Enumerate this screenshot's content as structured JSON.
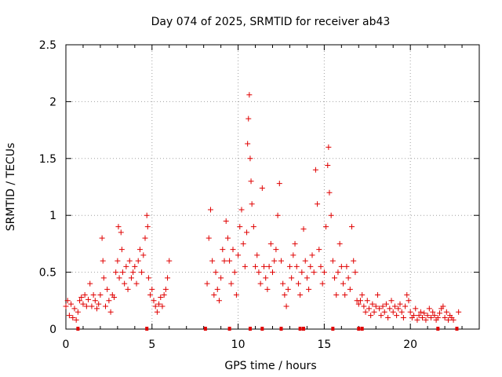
{
  "chart_data": {
    "type": "scatter",
    "title": "Day 074 of 2025, SRMTID for receiver ab43",
    "xlabel": "GPS time / hours",
    "ylabel": "SRMTID / TECUs",
    "xlim": [
      0,
      24
    ],
    "ylim": [
      0,
      2.5
    ],
    "xticks": [
      0,
      5,
      10,
      15,
      20
    ],
    "yticks": [
      0,
      0.5,
      1,
      1.5,
      2,
      2.5
    ],
    "xtick_labels": [
      "0",
      "5",
      "10",
      "15",
      "20"
    ],
    "ytick_labels": [
      "0",
      "0.5",
      "1",
      "1.5",
      "2",
      "2.5"
    ],
    "grid": true,
    "marker": "+",
    "color": "#e00000",
    "series": [
      {
        "name": "SRMTID",
        "points": [
          [
            0.0,
            0.2
          ],
          [
            0.1,
            0.25
          ],
          [
            0.2,
            0.12
          ],
          [
            0.3,
            0.22
          ],
          [
            0.4,
            0.1
          ],
          [
            0.5,
            0.18
          ],
          [
            0.6,
            0.08
          ],
          [
            0.7,
            0.15
          ],
          [
            0.8,
            0.25
          ],
          [
            0.9,
            0.28
          ],
          [
            1.0,
            0.22
          ],
          [
            1.1,
            0.3
          ],
          [
            1.2,
            0.2
          ],
          [
            1.3,
            0.26
          ],
          [
            1.4,
            0.4
          ],
          [
            1.5,
            0.2
          ],
          [
            1.6,
            0.3
          ],
          [
            1.7,
            0.25
          ],
          [
            1.8,
            0.18
          ],
          [
            1.9,
            0.22
          ],
          [
            2.0,
            0.3
          ],
          [
            2.1,
            0.8
          ],
          [
            2.15,
            0.6
          ],
          [
            2.2,
            0.45
          ],
          [
            2.3,
            0.2
          ],
          [
            2.4,
            0.35
          ],
          [
            2.5,
            0.25
          ],
          [
            2.6,
            0.15
          ],
          [
            2.7,
            0.3
          ],
          [
            2.8,
            0.28
          ],
          [
            2.9,
            0.5
          ],
          [
            3.0,
            0.6
          ],
          [
            3.05,
            0.9
          ],
          [
            3.1,
            0.45
          ],
          [
            3.2,
            0.85
          ],
          [
            3.25,
            0.7
          ],
          [
            3.3,
            0.5
          ],
          [
            3.4,
            0.4
          ],
          [
            3.5,
            0.55
          ],
          [
            3.6,
            0.35
          ],
          [
            3.7,
            0.6
          ],
          [
            3.8,
            0.45
          ],
          [
            3.9,
            0.5
          ],
          [
            4.0,
            0.55
          ],
          [
            4.1,
            0.4
          ],
          [
            4.2,
            0.6
          ],
          [
            4.3,
            0.7
          ],
          [
            4.4,
            0.5
          ],
          [
            4.5,
            0.65
          ],
          [
            4.6,
            0.8
          ],
          [
            4.7,
            1.0
          ],
          [
            4.75,
            0.9
          ],
          [
            4.8,
            0.45
          ],
          [
            4.9,
            0.3
          ],
          [
            5.0,
            0.35
          ],
          [
            5.1,
            0.25
          ],
          [
            5.2,
            0.2
          ],
          [
            5.3,
            0.15
          ],
          [
            5.4,
            0.22
          ],
          [
            5.5,
            0.28
          ],
          [
            5.6,
            0.2
          ],
          [
            5.7,
            0.3
          ],
          [
            5.8,
            0.35
          ],
          [
            5.9,
            0.45
          ],
          [
            6.0,
            0.6
          ],
          [
            8.2,
            0.4
          ],
          [
            8.3,
            0.8
          ],
          [
            8.4,
            1.05
          ],
          [
            8.5,
            0.6
          ],
          [
            8.6,
            0.3
          ],
          [
            8.7,
            0.5
          ],
          [
            8.8,
            0.35
          ],
          [
            8.9,
            0.25
          ],
          [
            9.0,
            0.45
          ],
          [
            9.1,
            0.7
          ],
          [
            9.2,
            0.6
          ],
          [
            9.3,
            0.95
          ],
          [
            9.4,
            0.8
          ],
          [
            9.5,
            0.6
          ],
          [
            9.6,
            0.4
          ],
          [
            9.7,
            0.7
          ],
          [
            9.8,
            0.5
          ],
          [
            9.9,
            0.3
          ],
          [
            10.0,
            0.65
          ],
          [
            10.1,
            0.9
          ],
          [
            10.2,
            1.05
          ],
          [
            10.3,
            0.75
          ],
          [
            10.4,
            0.55
          ],
          [
            10.5,
            0.85
          ],
          [
            10.55,
            1.63
          ],
          [
            10.6,
            1.85
          ],
          [
            10.65,
            2.06
          ],
          [
            10.7,
            1.5
          ],
          [
            10.75,
            1.3
          ],
          [
            10.8,
            1.1
          ],
          [
            10.9,
            0.9
          ],
          [
            11.0,
            0.55
          ],
          [
            11.1,
            0.65
          ],
          [
            11.2,
            0.5
          ],
          [
            11.3,
            0.4
          ],
          [
            11.4,
            1.24
          ],
          [
            11.5,
            0.55
          ],
          [
            11.6,
            0.45
          ],
          [
            11.7,
            0.35
          ],
          [
            11.8,
            0.55
          ],
          [
            11.9,
            0.75
          ],
          [
            12.0,
            0.5
          ],
          [
            12.1,
            0.6
          ],
          [
            12.2,
            0.7
          ],
          [
            12.3,
            1.0
          ],
          [
            12.4,
            1.28
          ],
          [
            12.5,
            0.6
          ],
          [
            12.6,
            0.4
          ],
          [
            12.7,
            0.3
          ],
          [
            12.8,
            0.2
          ],
          [
            12.9,
            0.35
          ],
          [
            13.0,
            0.55
          ],
          [
            13.1,
            0.45
          ],
          [
            13.2,
            0.65
          ],
          [
            13.3,
            0.75
          ],
          [
            13.4,
            0.55
          ],
          [
            13.5,
            0.4
          ],
          [
            13.6,
            0.3
          ],
          [
            13.7,
            0.5
          ],
          [
            13.8,
            0.88
          ],
          [
            13.9,
            0.6
          ],
          [
            14.0,
            0.45
          ],
          [
            14.1,
            0.35
          ],
          [
            14.2,
            0.55
          ],
          [
            14.3,
            0.65
          ],
          [
            14.4,
            0.5
          ],
          [
            14.5,
            1.4
          ],
          [
            14.6,
            1.1
          ],
          [
            14.7,
            0.7
          ],
          [
            14.8,
            0.55
          ],
          [
            14.9,
            0.4
          ],
          [
            15.0,
            0.5
          ],
          [
            15.1,
            0.9
          ],
          [
            15.2,
            1.44
          ],
          [
            15.25,
            1.6
          ],
          [
            15.3,
            1.2
          ],
          [
            15.4,
            1.0
          ],
          [
            15.5,
            0.6
          ],
          [
            15.6,
            0.45
          ],
          [
            15.7,
            0.3
          ],
          [
            15.8,
            0.5
          ],
          [
            15.9,
            0.75
          ],
          [
            16.0,
            0.55
          ],
          [
            16.1,
            0.4
          ],
          [
            16.2,
            0.3
          ],
          [
            16.3,
            0.55
          ],
          [
            16.4,
            0.45
          ],
          [
            16.5,
            0.35
          ],
          [
            16.6,
            0.9
          ],
          [
            16.7,
            0.6
          ],
          [
            16.8,
            0.5
          ],
          [
            16.9,
            0.25
          ],
          [
            17.0,
            0.22
          ],
          [
            17.1,
            0.25
          ],
          [
            17.2,
            0.3
          ],
          [
            17.3,
            0.2
          ],
          [
            17.4,
            0.15
          ],
          [
            17.5,
            0.25
          ],
          [
            17.6,
            0.18
          ],
          [
            17.7,
            0.12
          ],
          [
            17.8,
            0.22
          ],
          [
            17.9,
            0.15
          ],
          [
            18.0,
            0.2
          ],
          [
            18.1,
            0.3
          ],
          [
            18.2,
            0.18
          ],
          [
            18.3,
            0.12
          ],
          [
            18.4,
            0.2
          ],
          [
            18.5,
            0.15
          ],
          [
            18.6,
            0.22
          ],
          [
            18.7,
            0.1
          ],
          [
            18.8,
            0.18
          ],
          [
            18.9,
            0.25
          ],
          [
            19.0,
            0.15
          ],
          [
            19.1,
            0.2
          ],
          [
            19.2,
            0.12
          ],
          [
            19.3,
            0.18
          ],
          [
            19.4,
            0.22
          ],
          [
            19.5,
            0.15
          ],
          [
            19.6,
            0.1
          ],
          [
            19.7,
            0.2
          ],
          [
            19.8,
            0.3
          ],
          [
            19.9,
            0.25
          ],
          [
            20.0,
            0.15
          ],
          [
            20.1,
            0.1
          ],
          [
            20.2,
            0.12
          ],
          [
            20.3,
            0.18
          ],
          [
            20.4,
            0.08
          ],
          [
            20.5,
            0.12
          ],
          [
            20.6,
            0.15
          ],
          [
            20.7,
            0.1
          ],
          [
            20.8,
            0.14
          ],
          [
            20.9,
            0.08
          ],
          [
            21.0,
            0.12
          ],
          [
            21.1,
            0.18
          ],
          [
            21.2,
            0.1
          ],
          [
            21.3,
            0.15
          ],
          [
            21.4,
            0.12
          ],
          [
            21.5,
            0.08
          ],
          [
            21.6,
            0.1
          ],
          [
            21.7,
            0.14
          ],
          [
            21.8,
            0.18
          ],
          [
            21.9,
            0.2
          ],
          [
            22.0,
            0.1
          ],
          [
            22.1,
            0.15
          ],
          [
            22.2,
            0.08
          ],
          [
            22.3,
            0.12
          ],
          [
            22.4,
            0.1
          ],
          [
            22.5,
            0.08
          ],
          [
            22.8,
            0.15
          ]
        ],
        "baseline_markers": [
          0.7,
          4.7,
          8.1,
          9.5,
          10.7,
          11.4,
          12.5,
          13.6,
          13.8,
          15.5,
          17.0,
          17.2,
          21.6,
          22.7
        ]
      }
    ]
  }
}
